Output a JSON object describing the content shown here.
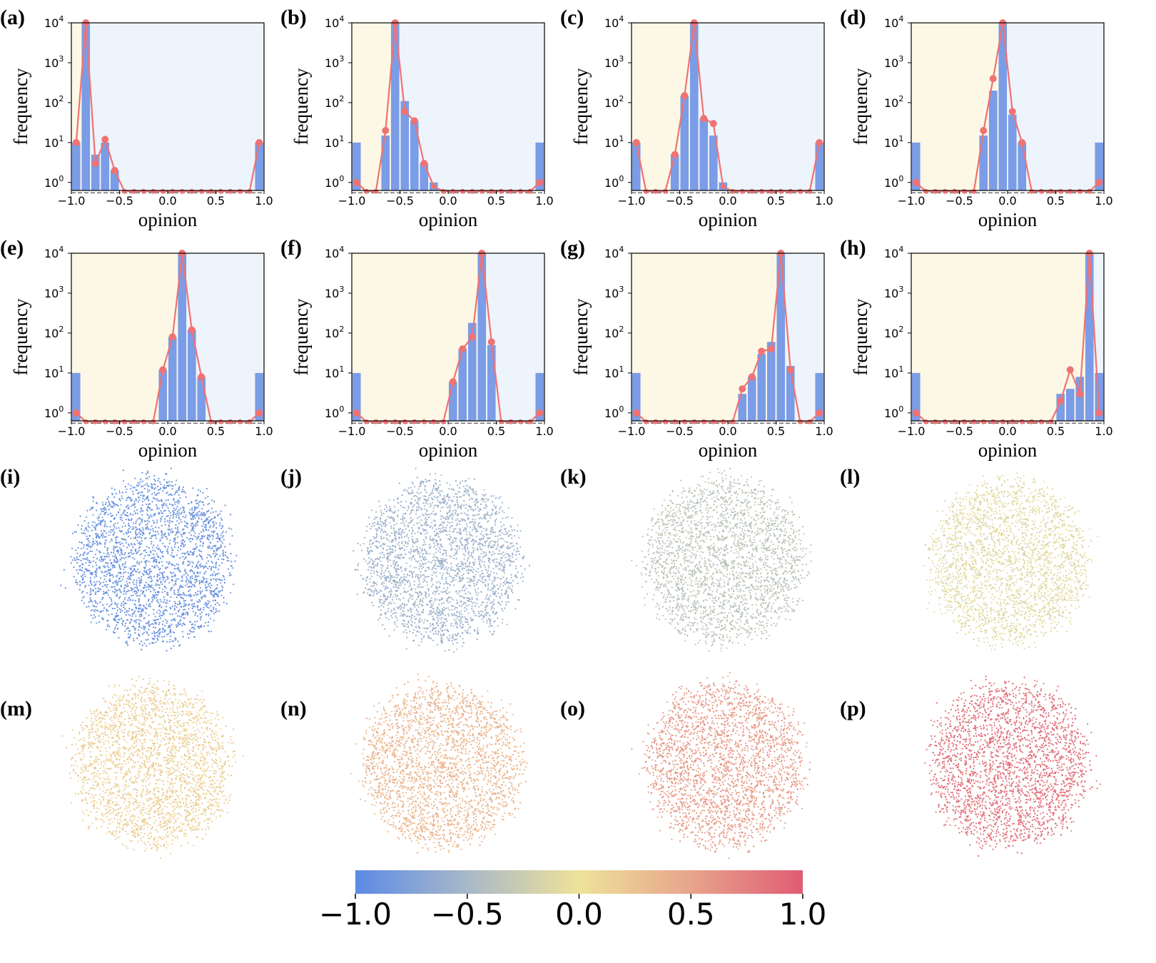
{
  "chart_data": [
    {
      "panel": "(a)",
      "type": "bar+line",
      "xlabel": "opinion",
      "ylabel": "frequency",
      "xlim": [
        -1.0,
        1.0
      ],
      "yscale": "log",
      "ylim_exp": [
        -0.2,
        4
      ],
      "bars": [
        [
          -0.95,
          10
        ],
        [
          -0.85,
          10000
        ],
        [
          -0.75,
          5
        ],
        [
          -0.65,
          10
        ],
        [
          -0.55,
          2
        ],
        [
          0.95,
          10
        ]
      ],
      "line": [
        [
          -0.95,
          10
        ],
        [
          -0.85,
          10000
        ],
        [
          -0.75,
          3
        ],
        [
          -0.65,
          12
        ],
        [
          -0.55,
          2
        ],
        [
          -0.45,
          0.6
        ],
        [
          -0.35,
          0.6
        ],
        [
          -0.25,
          0.6
        ],
        [
          -0.15,
          0.6
        ],
        [
          -0.05,
          0.6
        ],
        [
          0.05,
          0.6
        ],
        [
          0.15,
          0.6
        ],
        [
          0.25,
          0.6
        ],
        [
          0.35,
          0.6
        ],
        [
          0.45,
          0.6
        ],
        [
          0.55,
          0.6
        ],
        [
          0.65,
          0.6
        ],
        [
          0.75,
          0.6
        ],
        [
          0.85,
          0.6
        ],
        [
          0.95,
          10
        ]
      ]
    },
    {
      "panel": "(b)",
      "type": "bar+line",
      "xlabel": "opinion",
      "ylabel": "frequency",
      "xlim": [
        -1.0,
        1.0
      ],
      "yscale": "log",
      "ylim_exp": [
        -0.2,
        4
      ],
      "bars": [
        [
          -0.95,
          10
        ],
        [
          -0.65,
          15
        ],
        [
          -0.55,
          10000
        ],
        [
          -0.45,
          110
        ],
        [
          -0.35,
          35
        ],
        [
          -0.25,
          3
        ],
        [
          -0.15,
          1
        ],
        [
          0.95,
          10
        ]
      ],
      "line": [
        [
          -0.95,
          1
        ],
        [
          -0.85,
          0.6
        ],
        [
          -0.75,
          0.6
        ],
        [
          -0.65,
          20
        ],
        [
          -0.55,
          10000
        ],
        [
          -0.45,
          60
        ],
        [
          -0.35,
          35
        ],
        [
          -0.25,
          3
        ],
        [
          -0.15,
          0.8
        ],
        [
          -0.05,
          0.6
        ],
        [
          0.05,
          0.6
        ],
        [
          0.15,
          0.6
        ],
        [
          0.25,
          0.6
        ],
        [
          0.35,
          0.6
        ],
        [
          0.45,
          0.6
        ],
        [
          0.55,
          0.6
        ],
        [
          0.65,
          0.6
        ],
        [
          0.75,
          0.6
        ],
        [
          0.85,
          0.6
        ],
        [
          0.95,
          1
        ]
      ]
    },
    {
      "panel": "(c)",
      "type": "bar+line",
      "xlabel": "opinion",
      "ylabel": "frequency",
      "xlim": [
        -1.0,
        1.0
      ],
      "yscale": "log",
      "ylim_exp": [
        -0.2,
        4
      ],
      "bars": [
        [
          -0.95,
          10
        ],
        [
          -0.55,
          5
        ],
        [
          -0.45,
          150
        ],
        [
          -0.35,
          10000
        ],
        [
          -0.25,
          40
        ],
        [
          -0.15,
          15
        ],
        [
          -0.05,
          1
        ],
        [
          0.95,
          10
        ]
      ],
      "line": [
        [
          -0.95,
          10
        ],
        [
          -0.85,
          0.6
        ],
        [
          -0.75,
          0.6
        ],
        [
          -0.65,
          0.6
        ],
        [
          -0.55,
          5
        ],
        [
          -0.45,
          150
        ],
        [
          -0.35,
          10000
        ],
        [
          -0.25,
          40
        ],
        [
          -0.15,
          30
        ],
        [
          -0.05,
          0.8
        ],
        [
          0.05,
          0.6
        ],
        [
          0.15,
          0.6
        ],
        [
          0.25,
          0.6
        ],
        [
          0.35,
          0.6
        ],
        [
          0.45,
          0.6
        ],
        [
          0.55,
          0.6
        ],
        [
          0.65,
          0.6
        ],
        [
          0.75,
          0.6
        ],
        [
          0.85,
          0.6
        ],
        [
          0.95,
          10
        ]
      ]
    },
    {
      "panel": "(d)",
      "type": "bar+line",
      "xlabel": "opinion",
      "ylabel": "frequency",
      "xlim": [
        -1.0,
        1.0
      ],
      "yscale": "log",
      "ylim_exp": [
        -0.2,
        4
      ],
      "bars": [
        [
          -0.95,
          10
        ],
        [
          -0.25,
          15
        ],
        [
          -0.15,
          200
        ],
        [
          -0.05,
          10000
        ],
        [
          0.05,
          50
        ],
        [
          0.15,
          10
        ],
        [
          0.95,
          10
        ]
      ],
      "line": [
        [
          -0.95,
          1
        ],
        [
          -0.85,
          0.6
        ],
        [
          -0.75,
          0.6
        ],
        [
          -0.65,
          0.6
        ],
        [
          -0.55,
          0.6
        ],
        [
          -0.45,
          0.6
        ],
        [
          -0.35,
          0.6
        ],
        [
          -0.25,
          20
        ],
        [
          -0.15,
          400
        ],
        [
          -0.05,
          10000
        ],
        [
          0.05,
          60
        ],
        [
          0.15,
          10
        ],
        [
          0.25,
          0.6
        ],
        [
          0.35,
          0.6
        ],
        [
          0.45,
          0.6
        ],
        [
          0.55,
          0.6
        ],
        [
          0.65,
          0.6
        ],
        [
          0.75,
          0.6
        ],
        [
          0.85,
          0.6
        ],
        [
          0.95,
          1
        ]
      ]
    },
    {
      "panel": "(e)",
      "type": "bar+line",
      "xlabel": "opinion",
      "ylabel": "frequency",
      "xlim": [
        -1.0,
        1.0
      ],
      "yscale": "log",
      "ylim_exp": [
        -0.2,
        4
      ],
      "bars": [
        [
          -0.95,
          10
        ],
        [
          -0.05,
          12
        ],
        [
          0.05,
          80
        ],
        [
          0.15,
          10000
        ],
        [
          0.25,
          120
        ],
        [
          0.35,
          8
        ],
        [
          0.95,
          10
        ]
      ],
      "line": [
        [
          -0.95,
          1
        ],
        [
          -0.85,
          0.6
        ],
        [
          -0.75,
          0.6
        ],
        [
          -0.65,
          0.6
        ],
        [
          -0.55,
          0.6
        ],
        [
          -0.45,
          0.6
        ],
        [
          -0.35,
          0.6
        ],
        [
          -0.25,
          0.6
        ],
        [
          -0.15,
          0.6
        ],
        [
          -0.05,
          12
        ],
        [
          0.05,
          80
        ],
        [
          0.15,
          10000
        ],
        [
          0.25,
          120
        ],
        [
          0.35,
          8
        ],
        [
          0.45,
          0.6
        ],
        [
          0.55,
          0.6
        ],
        [
          0.65,
          0.6
        ],
        [
          0.75,
          0.6
        ],
        [
          0.85,
          0.6
        ],
        [
          0.95,
          1
        ]
      ]
    },
    {
      "panel": "(f)",
      "type": "bar+line",
      "xlabel": "opinion",
      "ylabel": "frequency",
      "xlim": [
        -1.0,
        1.0
      ],
      "yscale": "log",
      "ylim_exp": [
        -0.2,
        4
      ],
      "bars": [
        [
          -0.95,
          10
        ],
        [
          0.05,
          6
        ],
        [
          0.15,
          40
        ],
        [
          0.25,
          180
        ],
        [
          0.35,
          10000
        ],
        [
          0.45,
          50
        ],
        [
          0.95,
          10
        ]
      ],
      "line": [
        [
          -0.95,
          1
        ],
        [
          -0.85,
          0.6
        ],
        [
          -0.75,
          0.6
        ],
        [
          -0.65,
          0.6
        ],
        [
          -0.55,
          0.6
        ],
        [
          -0.45,
          0.6
        ],
        [
          -0.35,
          0.6
        ],
        [
          -0.25,
          0.6
        ],
        [
          -0.15,
          0.6
        ],
        [
          -0.05,
          0.6
        ],
        [
          0.05,
          6
        ],
        [
          0.15,
          40
        ],
        [
          0.25,
          80
        ],
        [
          0.35,
          10000
        ],
        [
          0.45,
          60
        ],
        [
          0.55,
          0.6
        ],
        [
          0.65,
          0.6
        ],
        [
          0.75,
          0.6
        ],
        [
          0.85,
          0.6
        ],
        [
          0.95,
          1
        ]
      ]
    },
    {
      "panel": "(g)",
      "type": "bar+line",
      "xlabel": "opinion",
      "ylabel": "frequency",
      "xlim": [
        -1.0,
        1.0
      ],
      "yscale": "log",
      "ylim_exp": [
        -0.2,
        4
      ],
      "bars": [
        [
          -0.95,
          10
        ],
        [
          0.15,
          3
        ],
        [
          0.25,
          8
        ],
        [
          0.35,
          30
        ],
        [
          0.45,
          60
        ],
        [
          0.55,
          10000
        ],
        [
          0.65,
          15
        ],
        [
          0.95,
          10
        ]
      ],
      "line": [
        [
          -0.95,
          1
        ],
        [
          -0.85,
          0.6
        ],
        [
          -0.75,
          0.6
        ],
        [
          -0.65,
          0.6
        ],
        [
          -0.55,
          0.6
        ],
        [
          -0.45,
          0.6
        ],
        [
          -0.35,
          0.6
        ],
        [
          -0.25,
          0.6
        ],
        [
          -0.15,
          0.6
        ],
        [
          -0.05,
          0.6
        ],
        [
          0.05,
          0.6
        ],
        [
          0.15,
          4
        ],
        [
          0.25,
          8
        ],
        [
          0.35,
          35
        ],
        [
          0.45,
          40
        ],
        [
          0.55,
          10000
        ],
        [
          0.65,
          12
        ],
        [
          0.75,
          0.6
        ],
        [
          0.85,
          0.6
        ],
        [
          0.95,
          1
        ]
      ]
    },
    {
      "panel": "(h)",
      "type": "bar+line",
      "xlabel": "opinion",
      "ylabel": "frequency",
      "xlim": [
        -1.0,
        1.0
      ],
      "yscale": "log",
      "ylim_exp": [
        -0.2,
        4
      ],
      "bars": [
        [
          -0.95,
          10
        ],
        [
          0.55,
          3
        ],
        [
          0.65,
          4
        ],
        [
          0.75,
          8
        ],
        [
          0.85,
          10000
        ],
        [
          0.95,
          10
        ]
      ],
      "line": [
        [
          -0.95,
          1
        ],
        [
          -0.85,
          0.6
        ],
        [
          -0.75,
          0.6
        ],
        [
          -0.65,
          0.6
        ],
        [
          -0.55,
          0.6
        ],
        [
          -0.45,
          0.6
        ],
        [
          -0.35,
          0.6
        ],
        [
          -0.25,
          0.6
        ],
        [
          -0.15,
          0.6
        ],
        [
          -0.05,
          0.6
        ],
        [
          0.05,
          0.6
        ],
        [
          0.15,
          0.6
        ],
        [
          0.25,
          0.6
        ],
        [
          0.35,
          0.6
        ],
        [
          0.45,
          0.6
        ],
        [
          0.55,
          2
        ],
        [
          0.65,
          12
        ],
        [
          0.75,
          3
        ],
        [
          0.85,
          10000
        ],
        [
          0.95,
          1
        ]
      ]
    },
    {
      "panel": "(i)",
      "type": "scatter",
      "mean_opinion": -0.9
    },
    {
      "panel": "(j)",
      "type": "scatter",
      "mean_opinion": -0.55
    },
    {
      "panel": "(k)",
      "type": "scatter",
      "mean_opinion": -0.35
    },
    {
      "panel": "(l)",
      "type": "scatter",
      "mean_opinion": -0.1
    },
    {
      "panel": "(m)",
      "type": "scatter",
      "mean_opinion": 0.15
    },
    {
      "panel": "(n)",
      "type": "scatter",
      "mean_opinion": 0.35
    },
    {
      "panel": "(o)",
      "type": "scatter",
      "mean_opinion": 0.55
    },
    {
      "panel": "(p)",
      "type": "scatter",
      "mean_opinion": 0.85
    }
  ],
  "histogram": {
    "x_ticks": [
      "−1.0",
      "−0.5",
      "0.0",
      "0.5",
      "1.0"
    ],
    "y_ticks": [
      "10",
      "10",
      "10",
      "10",
      "10"
    ],
    "y_tick_exponents": [
      "0",
      "1",
      "2",
      "3",
      "4"
    ],
    "xlabel": "opinion",
    "ylabel": "frequency"
  },
  "colorbar": {
    "range": [
      -1.0,
      1.0
    ],
    "ticks": [
      "−1.0",
      "−0.5",
      "0.0",
      "0.5",
      "1.0"
    ],
    "colors": [
      "#5c8ae6",
      "#a8b8c8",
      "#eee29a",
      "#e8a48c",
      "#e05c74"
    ]
  },
  "colors": {
    "bar": "#7b9ce6",
    "line": "#f07272",
    "bg_left": "#fdf8e6",
    "bg_right": "#eef4fb"
  }
}
